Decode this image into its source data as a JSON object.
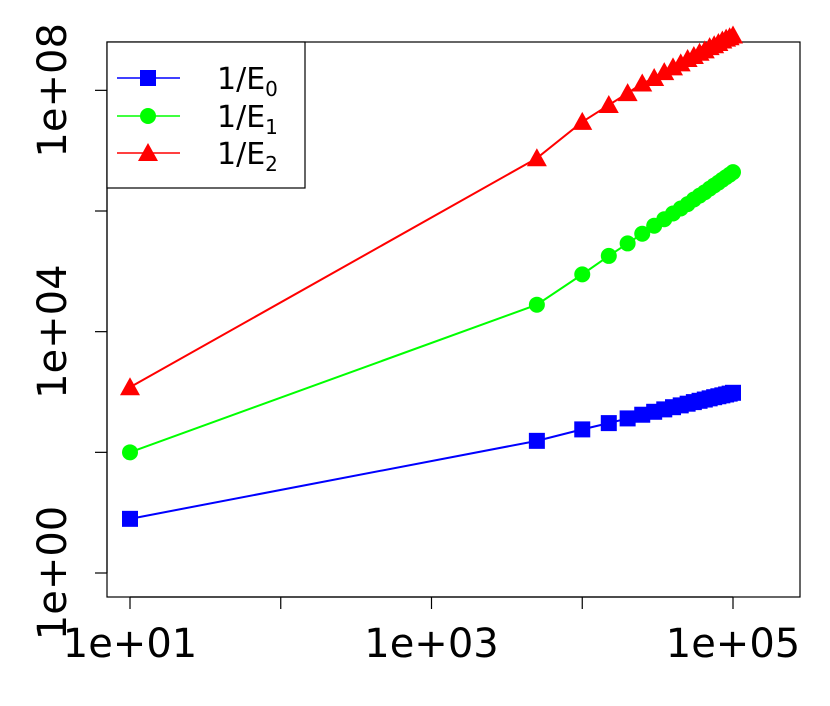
{
  "chart_data": {
    "type": "line",
    "log_x": true,
    "log_y": true,
    "xlim": [
      10,
      100000
    ],
    "ylim": [
      1,
      1000000000
    ],
    "x_ticks": [
      10,
      100,
      1000,
      10000,
      100000
    ],
    "x_tick_labels": [
      {
        "value": 10,
        "label": "1e+01"
      },
      {
        "value": 1000,
        "label": "1e+03"
      },
      {
        "value": 100000,
        "label": "1e+05"
      }
    ],
    "y_ticks": [
      1,
      100,
      10000,
      1000000,
      100000000
    ],
    "y_tick_labels": [
      {
        "value": 1,
        "label": "1e+00"
      },
      {
        "value": 10000,
        "label": "1e+04"
      },
      {
        "value": 100000000,
        "label": "1e+08"
      }
    ],
    "grid": false,
    "legend_position": "top-left",
    "x": [
      10,
      5000,
      10000,
      15000,
      20000,
      25000,
      30000,
      35000,
      40000,
      45000,
      50000,
      55000,
      60000,
      65000,
      70000,
      75000,
      80000,
      85000,
      90000,
      95000,
      100000
    ],
    "series": [
      {
        "name": "1/E0",
        "label_base": "1/E",
        "label_sub": "0",
        "color": "#0000ff",
        "marker": "square",
        "y": [
          7.9,
          155,
          240,
          305,
          365,
          420,
          470,
          515,
          560,
          600,
          640,
          680,
          715,
          750,
          785,
          820,
          850,
          880,
          910,
          940,
          970
        ]
      },
      {
        "name": "1/E1",
        "label_base": "1/E",
        "label_sub": "1",
        "color": "#00ff00",
        "marker": "circle",
        "y": [
          100,
          28000,
          89000,
          180000,
          290000,
          420000,
          570000,
          730000,
          910000,
          1100000,
          1300000,
          1550000,
          1800000,
          2050000,
          2350000,
          2650000,
          2950000,
          3300000,
          3650000,
          4000000,
          4400000
        ]
      },
      {
        "name": "1/E2",
        "label_base": "1/E",
        "label_sub": "2",
        "color": "#ff0000",
        "marker": "triangle",
        "y": [
          1200,
          7500000,
          30000000,
          57000000,
          90000000,
          130000000,
          160000000,
          200000000,
          240000000,
          280000000,
          330000000,
          370000000,
          420000000,
          460000000,
          520000000,
          560000000,
          610000000,
          670000000,
          720000000,
          760000000,
          810000000
        ]
      }
    ]
  }
}
